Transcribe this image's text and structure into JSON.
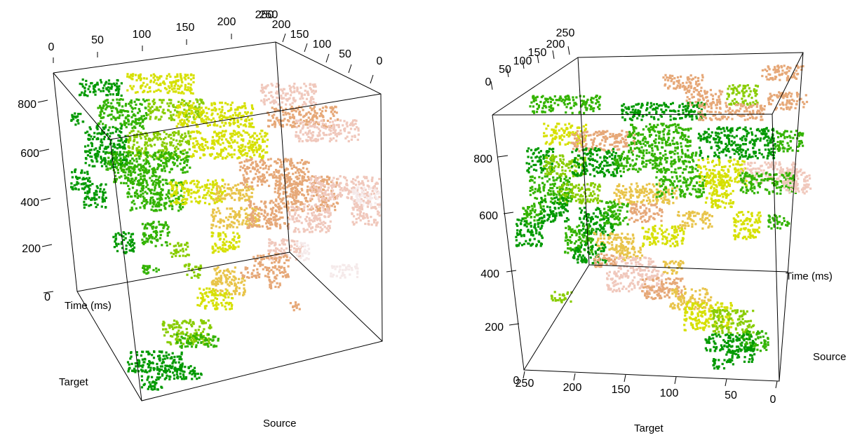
{
  "chart_data": [
    {
      "type": "scatter3d",
      "view": "left",
      "axes": {
        "time": {
          "label": "Time (ms)",
          "ticks": [
            "0",
            "200",
            "400",
            "600",
            "800"
          ]
        },
        "target": {
          "label": "Target",
          "ticks": [
            "0",
            "50",
            "100",
            "150",
            "200",
            "250"
          ]
        },
        "source": {
          "label": "Source",
          "ticks": [
            "250",
            "200",
            "150",
            "100",
            "50",
            "0"
          ]
        }
      },
      "color_scale": [
        "#009900",
        "#33b300",
        "#88cc00",
        "#d6e000",
        "#e8c44a",
        "#e6a878",
        "#f0c8bc",
        "#f5eaea"
      ]
    },
    {
      "type": "scatter3d",
      "view": "right",
      "axes": {
        "time": {
          "label": "Time (ms)",
          "ticks": [
            "200",
            "400",
            "600",
            "800"
          ]
        },
        "target": {
          "label": "Target",
          "ticks": [
            "0",
            "250",
            "200",
            "150",
            "100",
            "50",
            "0"
          ]
        },
        "source": {
          "label": "Source",
          "ticks": [
            "0",
            "50",
            "100",
            "150",
            "200",
            "250"
          ]
        }
      },
      "color_scale": [
        "#009900",
        "#33b300",
        "#88cc00",
        "#d6e000",
        "#e8c44a",
        "#e6a878",
        "#f0c8bc",
        "#f5eaea"
      ]
    }
  ]
}
